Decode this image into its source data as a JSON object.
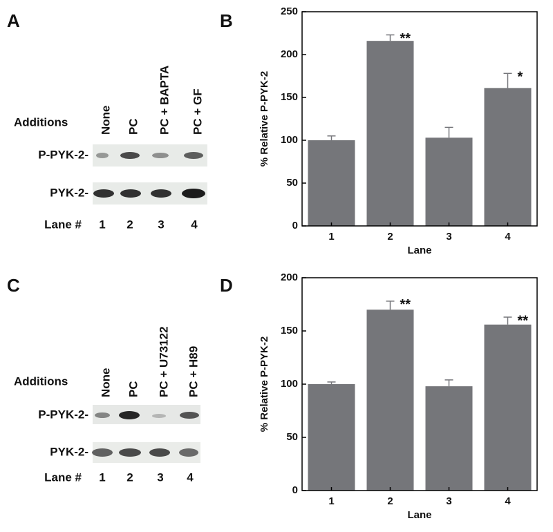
{
  "panels": {
    "a": "A",
    "b": "B",
    "c": "C",
    "d": "D"
  },
  "blots": [
    {
      "header": "Additions",
      "conditions": [
        "None",
        "PC",
        "PC + BAPTA",
        "PC + GF"
      ],
      "rows": [
        "P-PYK-2-",
        "PYK-2-"
      ],
      "lane_label": "Lane #",
      "lanes": [
        "1",
        "2",
        "3",
        "4"
      ]
    },
    {
      "header": "Additions",
      "conditions": [
        "None",
        "PC",
        "PC + U73122",
        "PC + H89"
      ],
      "rows": [
        "P-PYK-2-",
        "PYK-2-"
      ],
      "lane_label": "Lane #",
      "lanes": [
        "1",
        "2",
        "3",
        "4"
      ]
    }
  ],
  "chart_data": [
    {
      "type": "bar",
      "x_label": "Lane",
      "y_label": "% Relative P-PYK-2",
      "categories": [
        "1",
        "2",
        "3",
        "4"
      ],
      "values": [
        100,
        216,
        103,
        161
      ],
      "errors": [
        5,
        7,
        12,
        17
      ],
      "annotations": [
        null,
        "**",
        null,
        "*"
      ],
      "color": "#75767a",
      "ylim": [
        0,
        250
      ],
      "yticks": [
        0,
        50,
        100,
        150,
        200,
        250
      ]
    },
    {
      "type": "bar",
      "x_label": "Lane",
      "y_label": "% Relative P-PYK-2",
      "categories": [
        "1",
        "2",
        "3",
        "4"
      ],
      "values": [
        100,
        170,
        98,
        156
      ],
      "errors": [
        2,
        8,
        6,
        7
      ],
      "annotations": [
        null,
        "**",
        null,
        "**"
      ],
      "color": "#75767a",
      "ylim": [
        0,
        200
      ],
      "yticks": [
        0,
        50,
        100,
        150,
        200
      ]
    }
  ]
}
